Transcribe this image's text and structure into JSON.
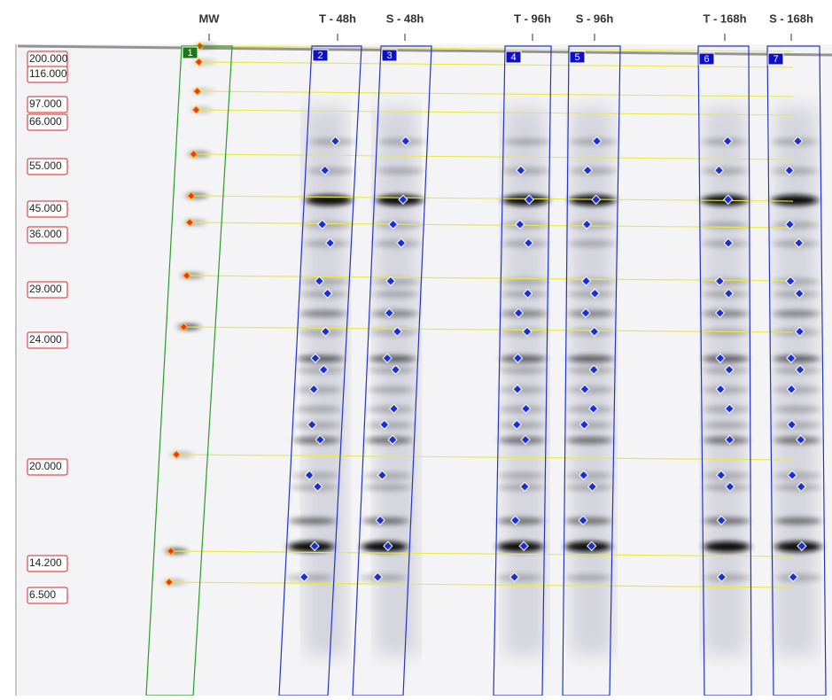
{
  "lane_headers": [
    "MW",
    "T - 48h",
    "S - 48h",
    "T - 96h",
    "S - 96h",
    "T - 168h",
    "S - 168h"
  ],
  "lane_numbers": [
    "1",
    "2",
    "3",
    "4",
    "5",
    "6",
    "7"
  ],
  "mw_markers": [
    "200.000",
    "116.000",
    "97.000",
    "66.000",
    "55.000",
    "45.000",
    "36.000",
    "29.000",
    "24.000",
    "20.000",
    "14.200",
    "6.500"
  ]
}
